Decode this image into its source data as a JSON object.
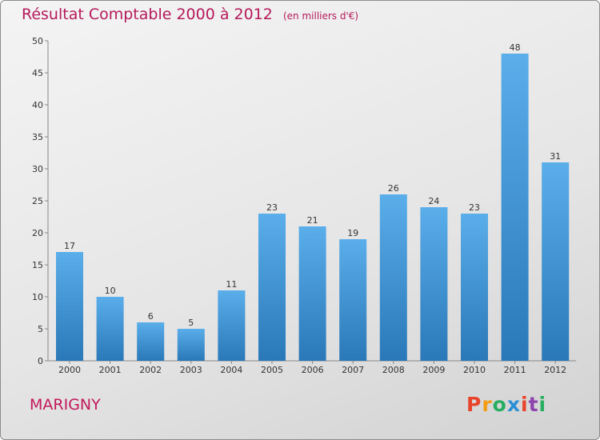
{
  "header": {
    "title": "Résultat Comptable 2000 à 2012",
    "unit": "(en milliers d'€)"
  },
  "footer": {
    "place": "MARIGNY",
    "logo_text": "Proxiti"
  },
  "colors": {
    "title": "#b5195b",
    "bar_top": "#5aaeea",
    "bar_bottom": "#2a78b8",
    "logo_letters": [
      "#e8432b",
      "#f39c12",
      "#27ae60",
      "#2a8fd6",
      "#e8432b",
      "#8e44ad",
      "#27ae60"
    ]
  },
  "chart_data": {
    "type": "bar",
    "categories": [
      "2000",
      "2001",
      "2002",
      "2003",
      "2004",
      "2005",
      "2006",
      "2007",
      "2008",
      "2009",
      "2010",
      "2011",
      "2012"
    ],
    "values": [
      17,
      10,
      6,
      5,
      11,
      23,
      21,
      19,
      26,
      24,
      23,
      48,
      31
    ],
    "title": "Résultat Comptable 2000 à 2012",
    "xlabel": "",
    "ylabel": "",
    "ylim": [
      0,
      50
    ],
    "yticks": [
      0,
      5,
      10,
      15,
      20,
      25,
      30,
      35,
      40,
      45,
      50
    ],
    "grid": false,
    "legend": "none",
    "data_labels": true
  }
}
